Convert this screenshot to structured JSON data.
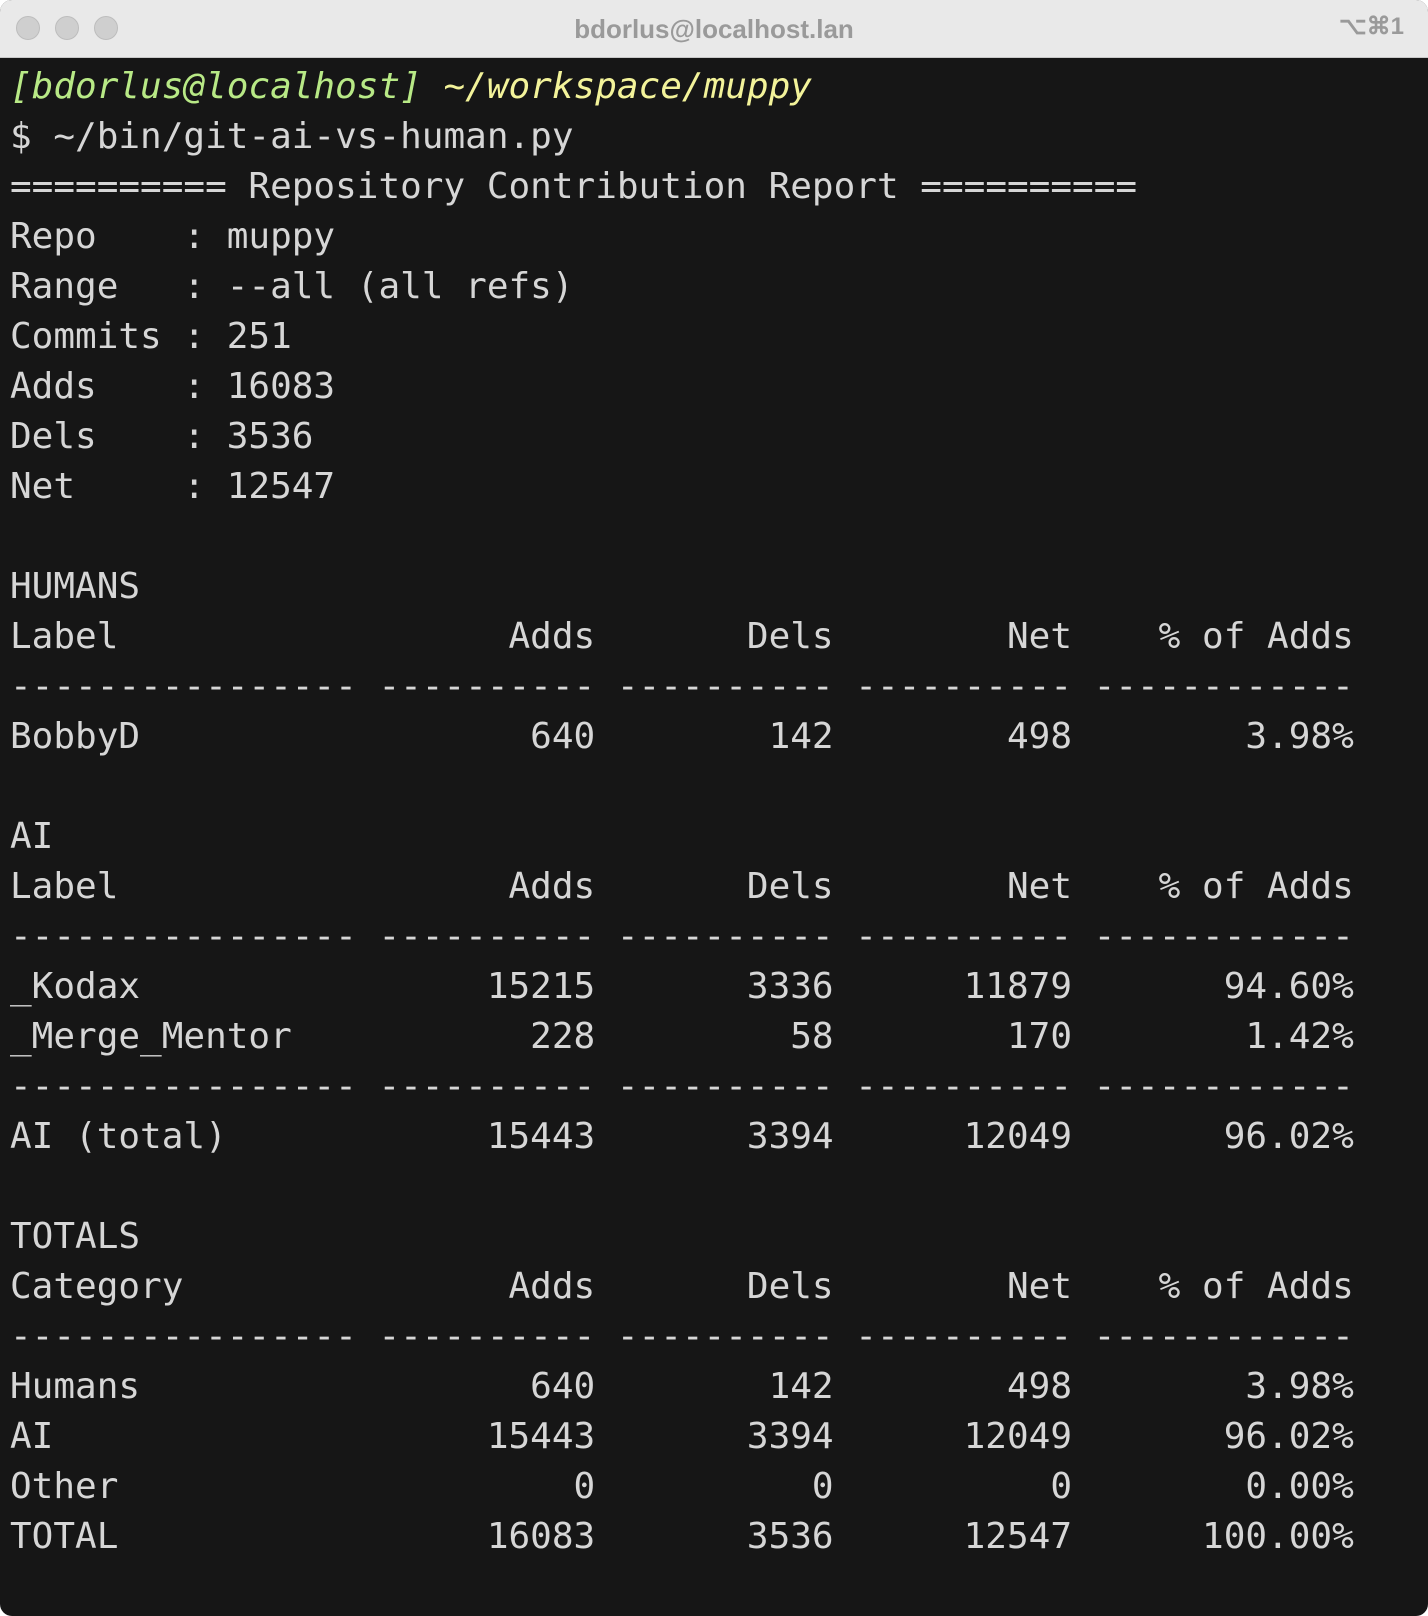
{
  "window": {
    "title": "bdorlus@localhost.lan",
    "shortcut": "⌥⌘1"
  },
  "prompt": {
    "user_host": "[bdorlus@localhost]",
    "cwd": "~/workspace/muppy"
  },
  "command": "$ ~/bin/git-ai-vs-human.py",
  "report": {
    "heading": "========== Repository Contribution Report ==========",
    "separator": ":",
    "summary": [
      {
        "label": "Repo",
        "value": "muppy"
      },
      {
        "label": "Range",
        "value": "--all (all refs)"
      },
      {
        "label": "Commits",
        "value": "251"
      },
      {
        "label": "Adds",
        "value": "16083"
      },
      {
        "label": "Dels",
        "value": "3536"
      },
      {
        "label": "Net",
        "value": "12547"
      }
    ],
    "rule": [
      "----------------",
      "----------",
      "----------",
      "----------",
      "------------"
    ],
    "sections": [
      {
        "title": "HUMANS",
        "columns": [
          "Label",
          "Adds",
          "Dels",
          "Net",
          "% of Adds"
        ],
        "rows": [
          [
            "BobbyD",
            "640",
            "142",
            "498",
            "3.98%"
          ]
        ]
      },
      {
        "title": "AI",
        "columns": [
          "Label",
          "Adds",
          "Dels",
          "Net",
          "% of Adds"
        ],
        "rows": [
          [
            "_Kodax",
            "15215",
            "3336",
            "11879",
            "94.60%"
          ],
          [
            "_Merge_Mentor",
            "228",
            "58",
            "170",
            "1.42%"
          ]
        ],
        "total": [
          "AI (total)",
          "15443",
          "3394",
          "12049",
          "96.02%"
        ]
      },
      {
        "title": "TOTALS",
        "columns": [
          "Category",
          "Adds",
          "Dels",
          "Net",
          "% of Adds"
        ],
        "rows": [
          [
            "Humans",
            "640",
            "142",
            "498",
            "3.98%"
          ],
          [
            "AI",
            "15443",
            "3394",
            "12049",
            "96.02%"
          ],
          [
            "Other",
            "0",
            "0",
            "0",
            "0.00%"
          ],
          [
            "TOTAL",
            "16083",
            "3536",
            "12547",
            "100.00%"
          ]
        ]
      }
    ]
  }
}
